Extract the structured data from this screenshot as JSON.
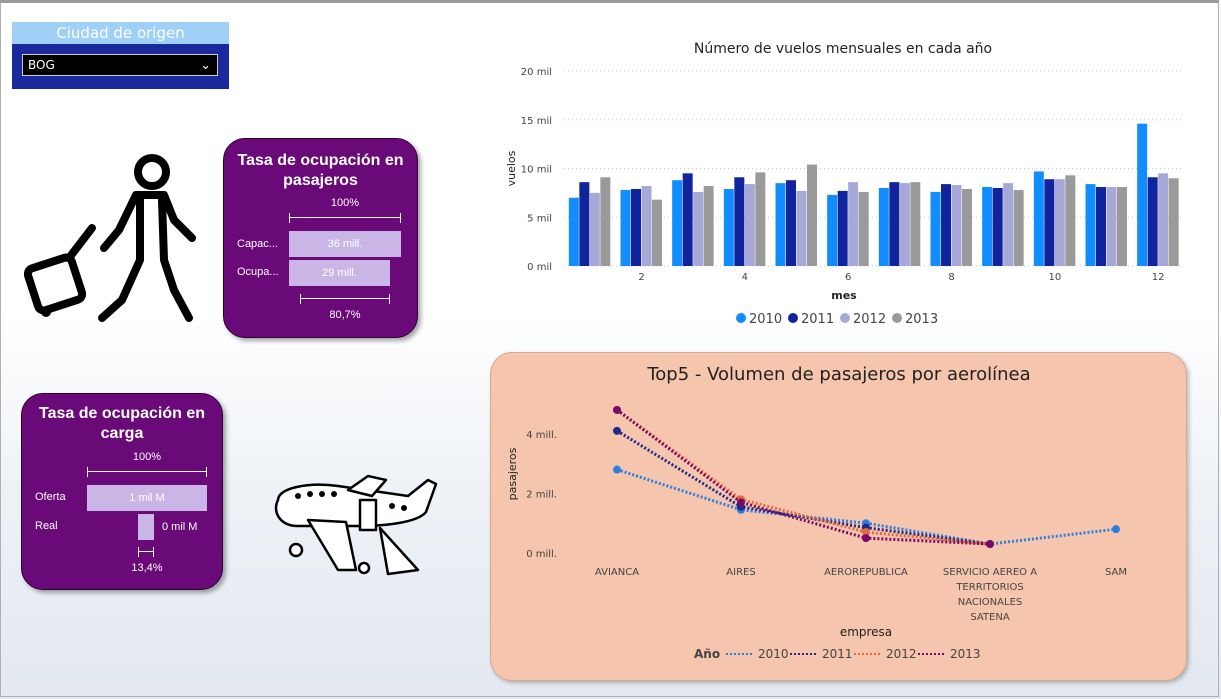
{
  "slicer": {
    "title": "Ciudad de origen",
    "value": "BOG"
  },
  "card_passengers": {
    "title_line1": "Tasa de ocupación en",
    "title_line2": "pasajeros",
    "top_label": "100%",
    "row1_label": "Capac...",
    "row1_value": "36 mill.",
    "row2_label": "Ocupa...",
    "row2_value": "29 mill.",
    "bottom_label": "80,7%",
    "row2_fraction": 0.807
  },
  "card_cargo": {
    "title_line1": "Tasa de ocupación en",
    "title_line2": "carga",
    "top_label": "100%",
    "row1_label": "Oferta",
    "row1_value": "1 mil M",
    "row2_label": "Real",
    "row2_value": "0 mil M",
    "bottom_label": "13,4%",
    "row2_fraction": 0.134
  },
  "icons": {
    "traveler": "traveler-with-luggage-icon",
    "plane": "cargo-plane-icon",
    "chevron": "chevron-down-icon"
  },
  "colors": {
    "2010": "#118dff",
    "2011": "#12239e",
    "2012": "#a6a8d8",
    "2013": "#9a9a9a"
  },
  "line_colors": {
    "2010": "#2b7fe0",
    "2011": "#1f2a8c",
    "2012": "#e8693a",
    "2013": "#7a0a6a"
  },
  "chart_data": [
    {
      "type": "bar",
      "title": "Número de vuelos mensuales en cada año",
      "xlabel": "mes",
      "ylabel": "vuelos",
      "categories": [
        1,
        2,
        3,
        4,
        5,
        6,
        7,
        8,
        9,
        10,
        11,
        12
      ],
      "x_tick_labels": [
        "2",
        "4",
        "6",
        "8",
        "10",
        "12"
      ],
      "y_tick_labels": [
        "0 mil",
        "5 mil",
        "10 mil",
        "15 mil",
        "20 mil"
      ],
      "ylim": [
        0,
        20000
      ],
      "grid": true,
      "legend_position": "bottom",
      "series": [
        {
          "name": "2010",
          "values": [
            7000,
            7800,
            8800,
            7900,
            8500,
            7300,
            8000,
            7600,
            8100,
            9700,
            8400,
            14600
          ]
        },
        {
          "name": "2011",
          "values": [
            8600,
            7900,
            9500,
            9100,
            8800,
            7700,
            8600,
            8400,
            8000,
            8900,
            8100,
            9100
          ]
        },
        {
          "name": "2012",
          "values": [
            7500,
            8200,
            7600,
            8400,
            7700,
            8600,
            8500,
            8300,
            8500,
            8900,
            8100,
            9500
          ]
        },
        {
          "name": "2013",
          "values": [
            9100,
            6800,
            8200,
            9600,
            10400,
            7600,
            8600,
            7900,
            7800,
            9300,
            8100,
            9000
          ]
        }
      ]
    },
    {
      "type": "line",
      "title": "Top5 - Volumen de pasajeros por aerolínea",
      "xlabel": "empresa",
      "ylabel": "pasajeros",
      "categories": [
        "AVIANCA",
        "AIRES",
        "AEROREPUBLICA",
        "SERVICIO AEREO A TERRITORIOS NACIONALES SATENA",
        "SAM"
      ],
      "category_lines": [
        [
          "AVIANCA"
        ],
        [
          "AIRES"
        ],
        [
          "AEROREPUBLICA"
        ],
        [
          "SERVICIO AEREO A",
          "TERRITORIOS",
          "NACIONALES",
          "SATENA"
        ],
        [
          "SAM"
        ]
      ],
      "y_tick_labels": [
        "0 mill.",
        "2 mill.",
        "4 mill."
      ],
      "ylim": [
        0,
        5000000
      ],
      "legend_title": "Año",
      "legend_position": "bottom",
      "series": [
        {
          "name": "2010",
          "values": [
            2800000,
            1450000,
            1000000,
            300000,
            800000
          ]
        },
        {
          "name": "2011",
          "values": [
            4100000,
            1550000,
            850000,
            300000,
            null
          ]
        },
        {
          "name": "2012",
          "values": [
            4800000,
            1800000,
            700000,
            300000,
            null
          ]
        },
        {
          "name": "2013",
          "values": [
            4800000,
            1700000,
            500000,
            300000,
            null
          ]
        }
      ]
    }
  ]
}
